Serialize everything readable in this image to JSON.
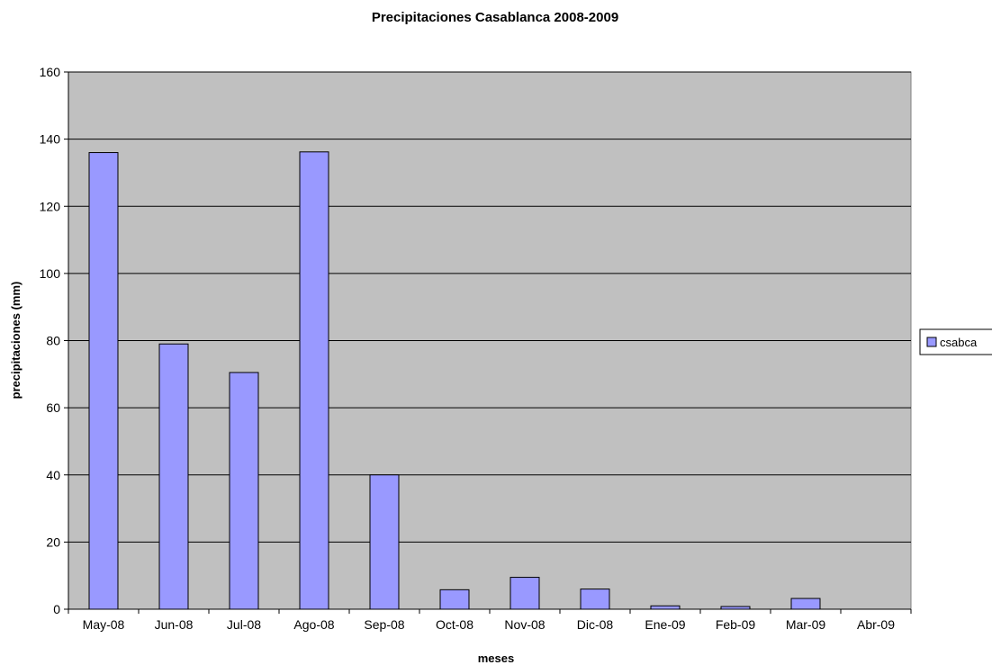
{
  "chart_data": {
    "type": "bar",
    "title": "Precipitaciones Casablanca 2008-2009",
    "xlabel": "meses",
    "ylabel": "precipitaciones (mm)",
    "categories": [
      "May-08",
      "Jun-08",
      "Jul-08",
      "Ago-08",
      "Sep-08",
      "Oct-08",
      "Nov-08",
      "Dic-08",
      "Ene-09",
      "Feb-09",
      "Mar-09",
      "Abr-09"
    ],
    "series": [
      {
        "name": "csabca",
        "values": [
          136,
          79,
          70.5,
          136.2,
          40,
          5.8,
          9.5,
          6,
          1,
          0.8,
          3.2,
          0
        ]
      }
    ],
    "ylim": [
      0,
      160
    ],
    "yticks": [
      0,
      20,
      40,
      60,
      80,
      100,
      120,
      140,
      160
    ],
    "grid": true,
    "legend_position": "right",
    "colors": {
      "bar_fill": "#9999ff",
      "plot_bg": "#c0c0c0",
      "bar_stroke": "#000000",
      "grid": "#000000"
    }
  }
}
